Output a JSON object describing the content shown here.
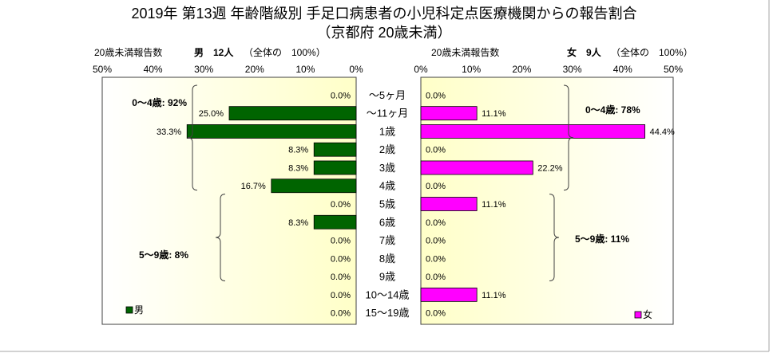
{
  "chart_data": {
    "type": "bar",
    "orientation": "horizontal",
    "title": "2019年 第13週 年齢階級別 手足口病患者の小児科定点医療機関からの報告割合",
    "subtitle": "（京都府 20歳未満）",
    "categories": [
      "～5ヶ月",
      "～11ヶ月",
      "1歳",
      "2歳",
      "3歳",
      "4歳",
      "5歳",
      "6歳",
      "7歳",
      "8歳",
      "9歳",
      "10～14歳",
      "15～19歳"
    ],
    "series": [
      {
        "name": "男",
        "color": "#006400",
        "values": [
          0.0,
          25.0,
          33.3,
          8.3,
          8.3,
          16.7,
          0.0,
          8.3,
          0.0,
          0.0,
          0.0,
          0.0,
          0.0
        ],
        "value_labels": [
          "0.0%",
          "25.0%",
          "33.3%",
          "8.3%",
          "8.3%",
          "16.7%",
          "0.0%",
          "8.3%",
          "0.0%",
          "0.0%",
          "0.0%",
          "0.0%",
          "0.0%"
        ]
      },
      {
        "name": "女",
        "color": "#ff00ff",
        "values": [
          0.0,
          11.1,
          44.4,
          0.0,
          22.2,
          0.0,
          11.1,
          0.0,
          0.0,
          0.0,
          0.0,
          11.1,
          0.0
        ],
        "value_labels": [
          "0.0%",
          "11.1%",
          "44.4%",
          "0.0%",
          "22.2%",
          "0.0%",
          "11.1%",
          "0.0%",
          "0.0%",
          "0.0%",
          "0.0%",
          "11.1%",
          "0.0%"
        ]
      }
    ],
    "xlim": [
      0,
      50
    ],
    "xticks": [
      0,
      10,
      20,
      30,
      40,
      50
    ],
    "xtick_labels": [
      "0%",
      "10%",
      "20%",
      "30%",
      "40%",
      "50%"
    ],
    "annotations": [
      {
        "series_index": 0,
        "from": 0,
        "to": 5,
        "text": "0～4歳: 92%"
      },
      {
        "series_index": 0,
        "from": 6,
        "to": 10,
        "text": "5～9歳: 8%"
      },
      {
        "series_index": 1,
        "from": 0,
        "to": 5,
        "text": "0～4歳: 78%"
      },
      {
        "series_index": 1,
        "from": 6,
        "to": 10,
        "text": "5～9歳: 11%"
      }
    ],
    "grid": false,
    "legend_placement": "bottom"
  },
  "header": {
    "male": {
      "label": "20歳未満報告数",
      "count": "男　12人",
      "share": "（全体の　100%）"
    },
    "female": {
      "label": "20歳未満報告数",
      "count": "女　9人",
      "share": "（全体の　100%）"
    }
  }
}
